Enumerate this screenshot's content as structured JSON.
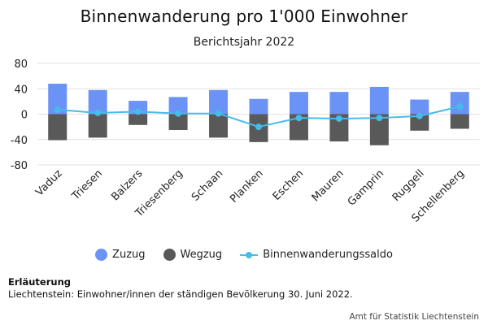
{
  "header": {
    "title": "Binnenwanderung pro 1'000 Einwohner",
    "subtitle": "Berichtsjahr 2022"
  },
  "legend": {
    "zuzug": "Zuzug",
    "wegzug": "Wegzug",
    "saldo": "Binnenwanderungssaldo"
  },
  "note": {
    "heading": "Erläuterung",
    "text": "Liechtenstein: Einwohner/innen der ständigen Bevölkerung 30. Juni 2022."
  },
  "source": "Amt für Statistik Liechtenstein",
  "colors": {
    "zuzug": "#6b93f5",
    "wegzug": "#595959",
    "saldo": "#45bce9",
    "grid": "#e2e2e2"
  },
  "chart_data": {
    "type": "bar",
    "title": "Binnenwanderung pro 1'000 Einwohner",
    "subtitle": "Berichtsjahr 2022",
    "categories": [
      "Vaduz",
      "Triesen",
      "Balzers",
      "Triesenberg",
      "Schaan",
      "Planken",
      "Eschen",
      "Mauren",
      "Gamprin",
      "Ruggell",
      "Schellenberg"
    ],
    "series": [
      {
        "name": "Zuzug",
        "type": "bar",
        "values": [
          48,
          38,
          21,
          27,
          38,
          24,
          35,
          35,
          43,
          23,
          35
        ]
      },
      {
        "name": "Wegzug",
        "type": "bar",
        "values": [
          -41,
          -37,
          -17,
          -25,
          -37,
          -44,
          -41,
          -43,
          -49,
          -26,
          -23
        ]
      },
      {
        "name": "Binnenwanderungssaldo",
        "type": "line",
        "values": [
          7,
          2,
          4,
          1,
          1,
          -20,
          -6,
          -7,
          -6,
          -3,
          12
        ]
      }
    ],
    "yticks": [
      80,
      40,
      0,
      -40,
      -80
    ],
    "ylim": [
      -80,
      80
    ],
    "stacked": true,
    "grid": true,
    "legend": "bottom"
  }
}
